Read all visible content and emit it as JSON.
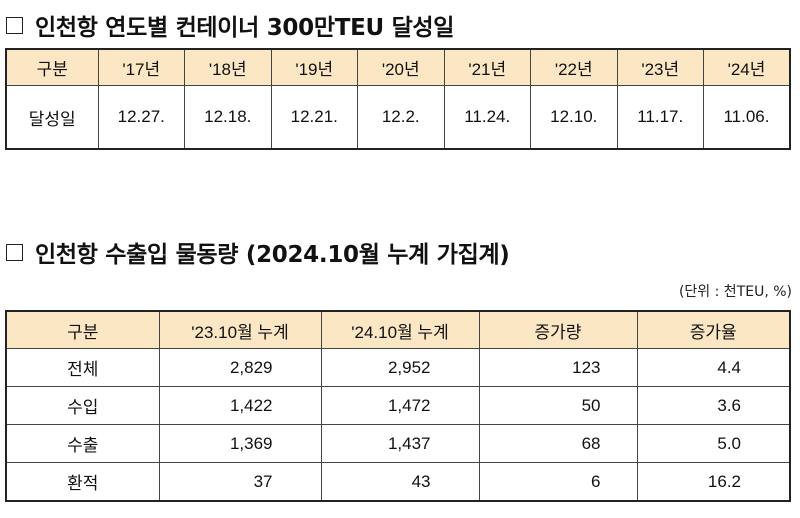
{
  "section1": {
    "title": "인천항 연도별 컨테이너 300만TEU 달성일",
    "header": [
      "구분",
      "'17년",
      "'18년",
      "'19년",
      "'20년",
      "'21년",
      "'22년",
      "'23년",
      "'24년"
    ],
    "row": [
      "달성일",
      "12.27.",
      "12.18.",
      "12.21.",
      "12.2.",
      "11.24.",
      "12.10.",
      "11.17.",
      "11.06."
    ]
  },
  "section2": {
    "title": "인천항 수출입 물동량 (2024.10월 누계 가집계)",
    "unit": "(단위 : 천TEU, %)",
    "header": [
      "구분",
      "'23.10월 누계",
      "'24.10월 누계",
      "증가량",
      "증가율"
    ],
    "rows": [
      [
        "전체",
        "2,829",
        "2,952",
        "123",
        "4.4"
      ],
      [
        "수입",
        "1,422",
        "1,472",
        "50",
        "3.6"
      ],
      [
        "수출",
        "1,369",
        "1,437",
        "68",
        "5.0"
      ],
      [
        "환적",
        "37",
        "43",
        "6",
        "16.2"
      ]
    ]
  }
}
